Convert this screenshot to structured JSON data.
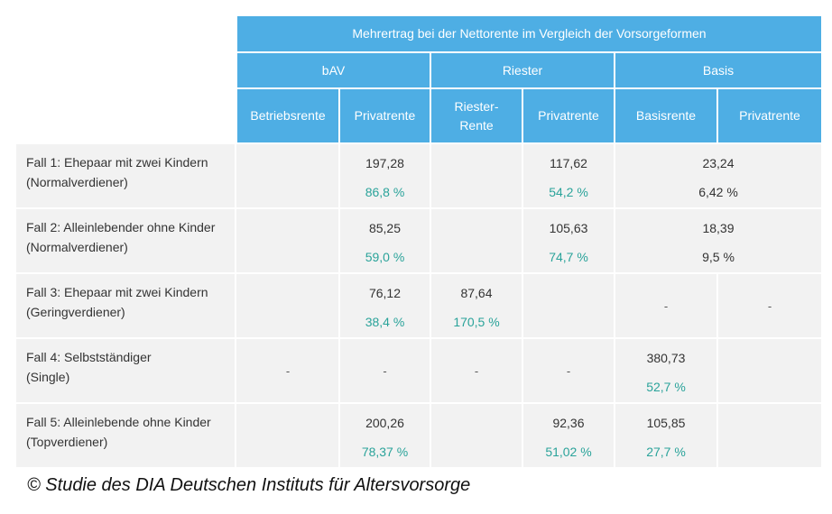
{
  "header": {
    "title": "Mehrertrag bei der Nettorente im Vergleich der Vorsorgeformen",
    "groups": [
      "bAV",
      "Riester",
      "Basis"
    ],
    "columns": [
      "Betriebsrente",
      "Privatrente",
      "Riester-\nRente",
      "Privatrente",
      "Basisrente",
      "Privatrente"
    ]
  },
  "rows": [
    {
      "label1": "Fall 1: Ehepaar mit zwei Kindern",
      "label2": "(Normalverdiener)",
      "bav_privat_value": "197,28",
      "bav_privat_pct": "86,8 %",
      "riester_privat_value": "117,62",
      "riester_privat_pct": "54,2 %",
      "basis_value": "23,24",
      "basis_pct": "6,42 %"
    },
    {
      "label1": "Fall 2: Alleinlebender ohne Kinder",
      "label2": "(Normalverdiener)",
      "bav_privat_value": "85,25",
      "bav_privat_pct": "59,0 %",
      "riester_privat_value": "105,63",
      "riester_privat_pct": "74,7 %",
      "basis_value": "18,39",
      "basis_pct": "9,5 %"
    },
    {
      "label1": "Fall 3: Ehepaar mit zwei Kindern",
      "label2": "(Geringverdiener)",
      "bav_privat_value": "76,12",
      "bav_privat_pct": "38,4 %",
      "riester_rente_value": "87,64",
      "riester_rente_pct": "170,5 %",
      "basisrente": "-",
      "basis_privat": "-"
    },
    {
      "label1": "Fall 4: Selbstständiger",
      "label2": "(Single)",
      "betriebsrente": "-",
      "bav_privat": "-",
      "riester_rente": "-",
      "riester_privat": "-",
      "basisrente_value": "380,73",
      "basisrente_pct": "52,7 %"
    },
    {
      "label1": "Fall 5: Alleinlebende ohne Kinder",
      "label2": "(Topverdiener)",
      "bav_privat_value": "200,26",
      "bav_privat_pct": "78,37 %",
      "riester_privat_value": "92,36",
      "riester_privat_pct": "51,02 %",
      "basisrente_value": "105,85",
      "basisrente_pct": "27,7 %"
    }
  ],
  "footer": {
    "copyright": "© Studie des DIA Deutschen Instituts für Altersvorsorge"
  },
  "colors": {
    "header_bg": "#4eaee4",
    "row_bg": "#f2f2f2",
    "percent": "#2aa39a"
  }
}
